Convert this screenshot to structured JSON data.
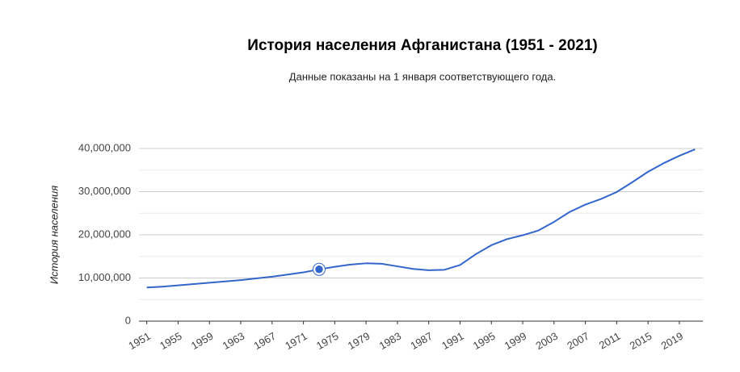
{
  "chart_data": {
    "type": "line",
    "title": "История населения Афганистана (1951 - 2021)",
    "subtitle": "Данные показаны на 1 января соответствующего года.",
    "y_label": "История населения",
    "x": [
      1951,
      1953,
      1955,
      1957,
      1959,
      1961,
      1963,
      1965,
      1967,
      1969,
      1971,
      1973,
      1975,
      1977,
      1979,
      1981,
      1983,
      1985,
      1987,
      1989,
      1991,
      1993,
      1995,
      1997,
      1999,
      2001,
      2003,
      2005,
      2007,
      2009,
      2011,
      2013,
      2015,
      2017,
      2019,
      2021
    ],
    "series": [
      {
        "name": "История населения",
        "color": "#3366cc",
        "values": [
          7800000,
          8000000,
          8300000,
          8600000,
          8900000,
          9200000,
          9500000,
          9900000,
          10300000,
          10800000,
          11300000,
          12000000,
          12600000,
          13100000,
          13400000,
          13300000,
          12700000,
          12100000,
          11800000,
          11900000,
          13000000,
          15500000,
          17600000,
          19000000,
          19900000,
          21000000,
          23000000,
          25300000,
          27000000,
          28300000,
          29900000,
          32200000,
          34600000,
          36600000,
          38300000,
          39800000
        ]
      }
    ],
    "highlight_x": 1973,
    "xlim": [
      1950,
      2022
    ],
    "xticks": [
      1951,
      1955,
      1959,
      1963,
      1967,
      1971,
      1975,
      1979,
      1983,
      1987,
      1991,
      1995,
      1999,
      2003,
      2007,
      2011,
      2015,
      2019
    ],
    "ylim": [
      0,
      40000000
    ],
    "yticks": [
      0,
      {
        "value": 10000000,
        "label": "10,000,000"
      },
      {
        "value": 20000000,
        "label": "20,000,000"
      },
      {
        "value": 30000000,
        "label": "30,000,000"
      },
      {
        "value": 40000000,
        "label": "40,000,000"
      }
    ],
    "minor_yticks": [
      5000000,
      15000000,
      25000000,
      35000000
    ],
    "grid": true
  }
}
